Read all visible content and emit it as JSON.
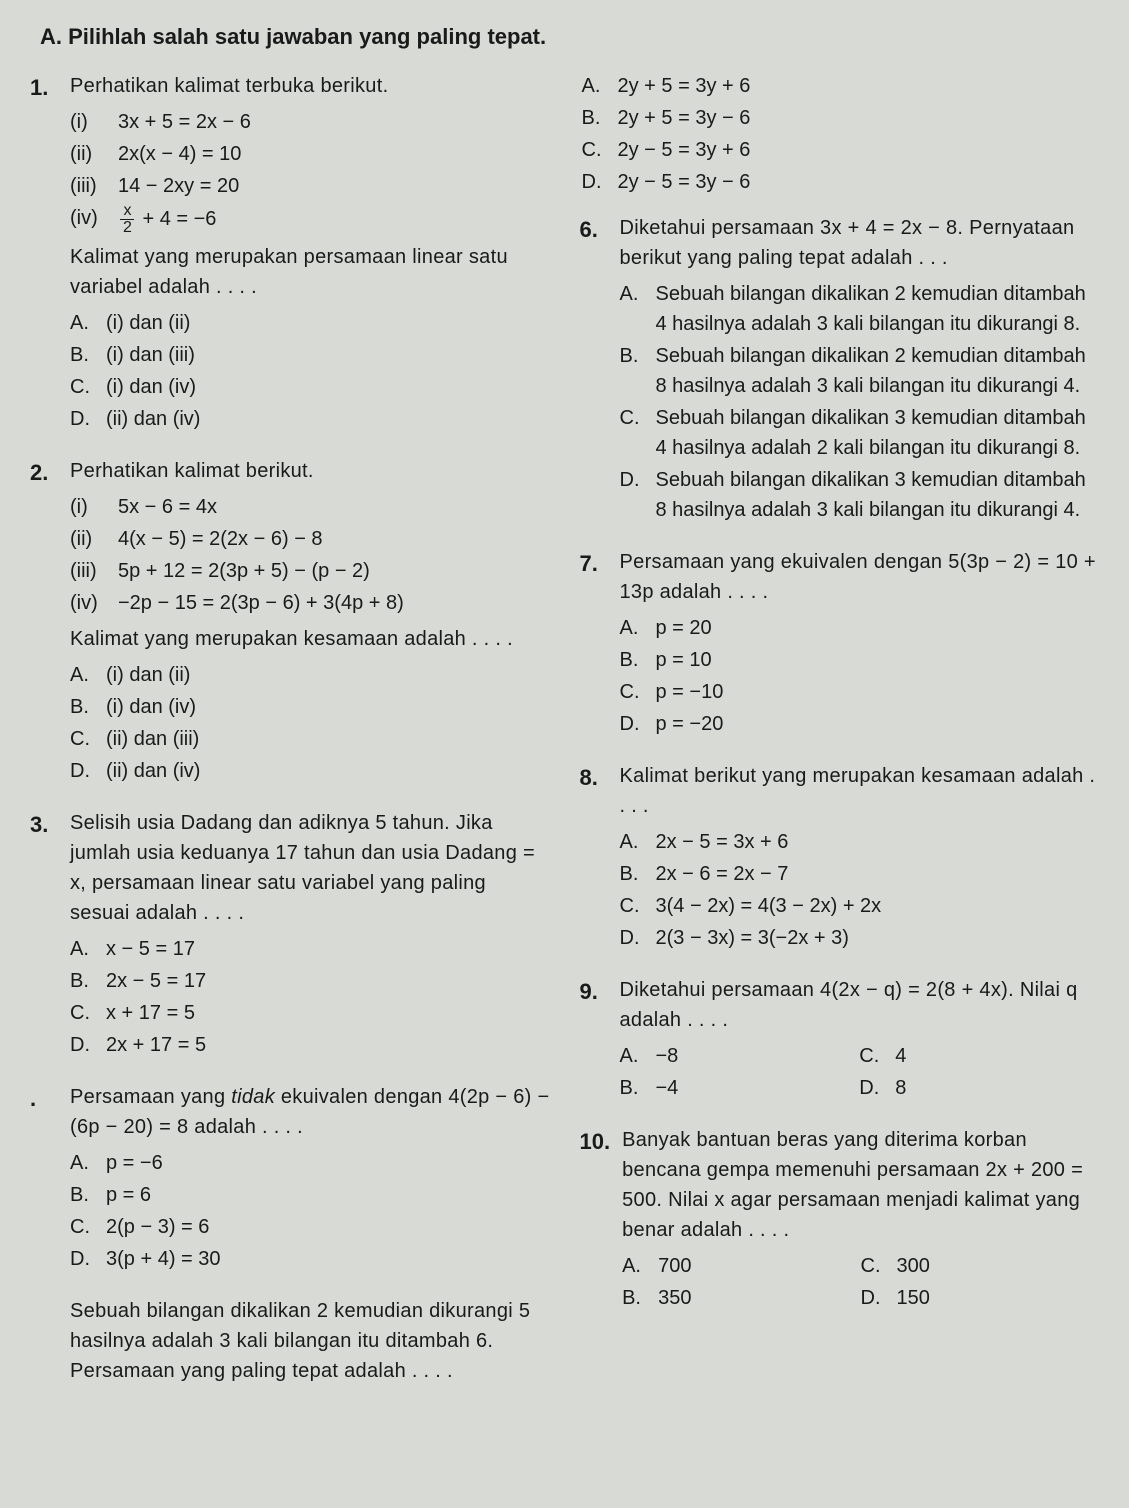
{
  "header": "A.   Pilihlah salah satu jawaban yang paling tepat.",
  "left": [
    {
      "n": "1.",
      "stem": "Perhatikan kalimat terbuka berikut.",
      "sub": [
        {
          "l": "(i)",
          "t": "3x + 5 = 2x − 6"
        },
        {
          "l": "(ii)",
          "t": "2x(x − 4) = 10"
        },
        {
          "l": "(iii)",
          "t": "14 − 2xy = 20"
        },
        {
          "l": "(iv)",
          "t": "__FRAC_X2__ + 4 = −6"
        }
      ],
      "stem2": "Kalimat yang merupakan persamaan linear satu variabel adalah . . . .",
      "opts": [
        {
          "l": "A.",
          "t": "(i) dan (ii)"
        },
        {
          "l": "B.",
          "t": "(i) dan (iii)"
        },
        {
          "l": "C.",
          "t": "(i) dan (iv)"
        },
        {
          "l": "D.",
          "t": "(ii) dan (iv)"
        }
      ]
    },
    {
      "n": "2.",
      "stem": "Perhatikan kalimat berikut.",
      "sub": [
        {
          "l": "(i)",
          "t": "5x − 6 = 4x"
        },
        {
          "l": "(ii)",
          "t": "4(x − 5) = 2(2x − 6) − 8"
        },
        {
          "l": "(iii)",
          "t": "5p + 12 = 2(3p + 5) − (p − 2)"
        },
        {
          "l": "(iv)",
          "t": "−2p − 15 = 2(3p − 6) + 3(4p + 8)"
        }
      ],
      "stem2": "Kalimat yang merupakan kesamaan adalah . . . .",
      "opts": [
        {
          "l": "A.",
          "t": "(i) dan (ii)"
        },
        {
          "l": "B.",
          "t": "(i) dan (iv)"
        },
        {
          "l": "C.",
          "t": "(ii) dan (iii)"
        },
        {
          "l": "D.",
          "t": "(ii) dan (iv)"
        }
      ]
    },
    {
      "n": "3.",
      "stem": "Selisih usia Dadang dan adiknya 5 tahun. Jika jumlah usia keduanya 17 tahun dan usia Dadang = x, persamaan linear satu variabel yang paling sesuai adalah . . . .",
      "opts": [
        {
          "l": "A.",
          "t": "x − 5 = 17"
        },
        {
          "l": "B.",
          "t": "2x − 5 = 17"
        },
        {
          "l": "C.",
          "t": "x + 17 = 5"
        },
        {
          "l": "D.",
          "t": "2x + 17 = 5"
        }
      ]
    },
    {
      "n": ".",
      "stem": "Persamaan yang <span class=\"ital\">tidak</span> ekuivalen dengan 4(2p − 6) − (6p − 20) = 8 adalah . . . .",
      "opts": [
        {
          "l": "A.",
          "t": "p = −6"
        },
        {
          "l": "B.",
          "t": "p = 6"
        },
        {
          "l": "C.",
          "t": "2(p − 3) = 6"
        },
        {
          "l": "D.",
          "t": "3(p + 4) = 30"
        }
      ]
    },
    {
      "n": "",
      "stem": "Sebuah bilangan dikalikan 2 kemudian dikurangi 5 hasilnya adalah 3 kali bilangan itu ditambah 6. Persamaan yang paling tepat adalah . . . ."
    }
  ],
  "topOpts": [
    {
      "l": "A.",
      "t": "2y + 5 = 3y + 6"
    },
    {
      "l": "B.",
      "t": "2y + 5 = 3y − 6"
    },
    {
      "l": "C.",
      "t": "2y − 5 = 3y + 6"
    },
    {
      "l": "D.",
      "t": "2y − 5 = 3y − 6"
    }
  ],
  "right": [
    {
      "n": "6.",
      "stem": "Diketahui persamaan 3x + 4 = 2x − 8. Pernyataan berikut yang paling tepat adalah . . .",
      "opts": [
        {
          "l": "A.",
          "t": "Sebuah bilangan dikalikan 2 kemudian ditambah 4 hasilnya adalah 3 kali bilangan itu dikurangi 8."
        },
        {
          "l": "B.",
          "t": "Sebuah bilangan dikalikan 2 kemudian ditambah 8 hasilnya adalah 3 kali bilangan itu dikurangi 4."
        },
        {
          "l": "C.",
          "t": "Sebuah bilangan dikalikan 3 kemudian ditambah 4 hasilnya adalah 2 kali bilangan itu dikurangi 8."
        },
        {
          "l": "D.",
          "t": "Sebuah bilangan dikalikan 3 kemudian ditambah 8 hasilnya adalah 3 kali bilangan itu dikurangi 4."
        }
      ]
    },
    {
      "n": "7.",
      "stem": "Persamaan yang ekuivalen dengan 5(3p − 2) = 10 + 13p adalah . . . .",
      "opts": [
        {
          "l": "A.",
          "t": "p = 20"
        },
        {
          "l": "B.",
          "t": "p = 10"
        },
        {
          "l": "C.",
          "t": "p = −10"
        },
        {
          "l": "D.",
          "t": "p = −20"
        }
      ]
    },
    {
      "n": "8.",
      "stem": "Kalimat berikut yang merupakan kesamaan adalah . . . .",
      "opts": [
        {
          "l": "A.",
          "t": "2x − 5 = 3x + 6"
        },
        {
          "l": "B.",
          "t": "2x − 6 = 2x − 7"
        },
        {
          "l": "C.",
          "t": "3(4 − 2x) = 4(3 − 2x) + 2x"
        },
        {
          "l": "D.",
          "t": "2(3 − 3x) = 3(−2x + 3)"
        }
      ]
    },
    {
      "n": "9.",
      "stem": "Diketahui persamaan 4(2x − q) = 2(8 + 4x). Nilai q adalah . . . .",
      "optsH": [
        {
          "l": "A.",
          "t": "−8"
        },
        {
          "l": "C.",
          "t": "4"
        },
        {
          "l": "B.",
          "t": "−4"
        },
        {
          "l": "D.",
          "t": "8"
        }
      ]
    },
    {
      "n": "10.",
      "stem": "Banyak bantuan beras yang diterima korban bencana gempa memenuhi persamaan 2x + 200 = 500. Nilai x agar persamaan menjadi kalimat yang benar adalah . . . .",
      "optsH": [
        {
          "l": "A.",
          "t": "700"
        },
        {
          "l": "C.",
          "t": "300"
        },
        {
          "l": "B.",
          "t": "350"
        },
        {
          "l": "D.",
          "t": "150"
        }
      ]
    }
  ]
}
